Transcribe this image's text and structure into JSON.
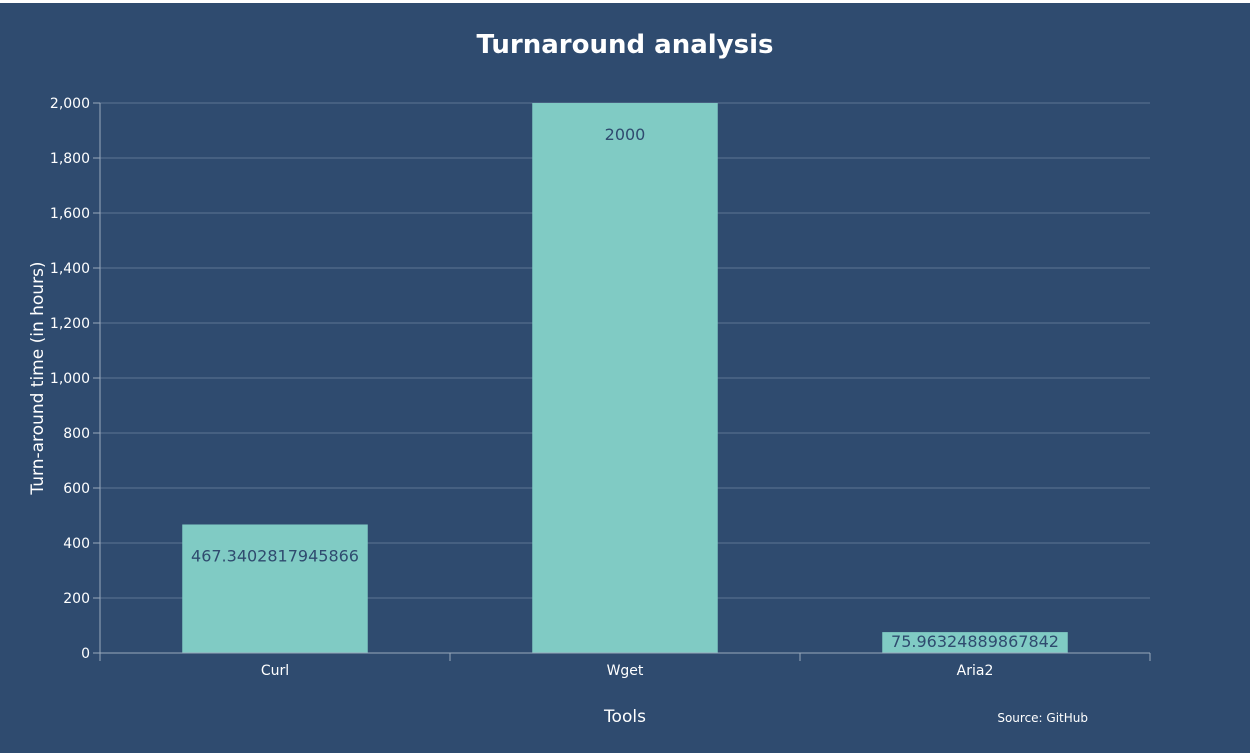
{
  "chart_data": {
    "type": "bar",
    "title": "Turnaround analysis",
    "xlabel": "Tools",
    "ylabel": "Turn-around time (in hours)",
    "categories": [
      "Curl",
      "Wget",
      "Aria2"
    ],
    "values": [
      467.3402817945866,
      2000,
      75.96324889867842
    ],
    "data_labels": [
      "467.3402817945866",
      "2000",
      "75.96324889867842"
    ],
    "ylim": [
      0,
      2000
    ],
    "yticks": [
      0,
      200,
      400,
      600,
      800,
      1000,
      1200,
      1400,
      1600,
      1800,
      2000
    ],
    "ytick_labels": [
      "0",
      "200",
      "400",
      "600",
      "800",
      "1,000",
      "1,200",
      "1,400",
      "1,600",
      "1,800",
      "2,000"
    ],
    "grid": true,
    "legend": false,
    "source": "Source: GitHub",
    "colors": {
      "background": "#2f4b6f",
      "bar": "#80cbc4",
      "text": "#ffffff",
      "data_label": "#2f4b6f"
    }
  }
}
